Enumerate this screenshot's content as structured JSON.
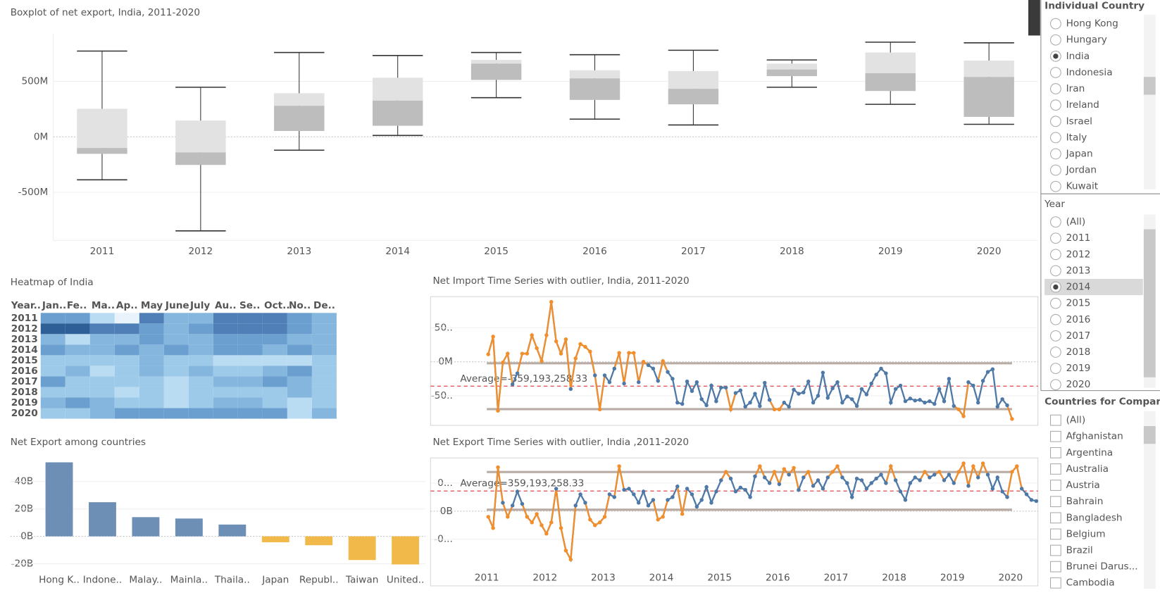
{
  "chart_data": [
    {
      "type": "box",
      "title": "Boxplot of net export, India, 2011-2020",
      "categories": [
        "2011",
        "2012",
        "2013",
        "2014",
        "2015",
        "2016",
        "2017",
        "2018",
        "2019",
        "2020"
      ],
      "max": [
        773000000,
        447000000,
        760000000,
        733000000,
        760000000,
        740000000,
        780000000,
        693000000,
        853000000,
        847000000
      ],
      "q3": [
        253000000,
        147000000,
        393000000,
        533000000,
        693000000,
        600000000,
        593000000,
        660000000,
        760000000,
        687000000
      ],
      "median": [
        -100000000,
        -140000000,
        280000000,
        327000000,
        660000000,
        527000000,
        433000000,
        607000000,
        573000000,
        540000000
      ],
      "q1": [
        -153000000,
        -253000000,
        53000000,
        100000000,
        513000000,
        333000000,
        293000000,
        547000000,
        413000000,
        180000000
      ],
      "min": [
        -387000000,
        -847000000,
        -120000000,
        13000000,
        353000000,
        160000000,
        107000000,
        447000000,
        293000000,
        113000000
      ],
      "box_colors": [
        "#e2e2e2",
        "#bdbdbd"
      ],
      "whisker_color": "#333333",
      "ylim": [
        -933000000,
        933000000
      ],
      "yticks": [
        {
          "value": 500000000,
          "label": "500M"
        },
        {
          "value": 0,
          "label": "0M"
        },
        {
          "value": -500000000,
          "label": "-500M"
        }
      ]
    },
    {
      "type": "heatmap",
      "title": "Heatmap of India",
      "row_header": "Year..",
      "categories": [
        "Jan..",
        "Fe..",
        "Ma..",
        "Ap..",
        "May",
        "June",
        "July",
        "Au..",
        "Se..",
        "Oct..",
        "No..",
        "De.."
      ],
      "rows": [
        "2011",
        "2012",
        "2013",
        "2014",
        "2015",
        "2016",
        "2017",
        "2018",
        "2019",
        "2020"
      ],
      "colors": [
        [
          "#6a9fcf",
          "#6a9fcf",
          "#b9dcf2",
          "#e8f3fb",
          "#4f7fb6",
          "#85b6dd",
          "#85b6dd",
          "#4f7fb6",
          "#4f7fb6",
          "#4f7fb6",
          "#6a9fcf",
          "#85b6dd"
        ],
        [
          "#2f5f97",
          "#2f5f97",
          "#4f7fb6",
          "#4f7fb6",
          "#6a9fcf",
          "#85b6dd",
          "#6a9fcf",
          "#4f7fb6",
          "#4f7fb6",
          "#4f7fb6",
          "#6a9fcf",
          "#85b6dd"
        ],
        [
          "#85b6dd",
          "#b9dcf2",
          "#85b6dd",
          "#85b6dd",
          "#6a9fcf",
          "#85b6dd",
          "#85b6dd",
          "#6a9fcf",
          "#6a9fcf",
          "#6a9fcf",
          "#85b6dd",
          "#85b6dd"
        ],
        [
          "#6a9fcf",
          "#85b6dd",
          "#85b6dd",
          "#6a9fcf",
          "#85b6dd",
          "#6a9fcf",
          "#85b6dd",
          "#6a9fcf",
          "#6a9fcf",
          "#85b6dd",
          "#6a9fcf",
          "#85b6dd"
        ],
        [
          "#9ecae9",
          "#9ecae9",
          "#9ecae9",
          "#9ecae9",
          "#85b6dd",
          "#9ecae9",
          "#9ecae9",
          "#b9dcf2",
          "#b9dcf2",
          "#b9dcf2",
          "#b9dcf2",
          "#9ecae9"
        ],
        [
          "#9ecae9",
          "#85b6dd",
          "#b9dcf2",
          "#9ecae9",
          "#85b6dd",
          "#9ecae9",
          "#85b6dd",
          "#9ecae9",
          "#9ecae9",
          "#85b6dd",
          "#6a9fcf",
          "#9ecae9"
        ],
        [
          "#6a9fcf",
          "#9ecae9",
          "#9ecae9",
          "#9ecae9",
          "#9ecae9",
          "#b9dcf2",
          "#9ecae9",
          "#85b6dd",
          "#85b6dd",
          "#6a9fcf",
          "#85b6dd",
          "#9ecae9"
        ],
        [
          "#9ecae9",
          "#9ecae9",
          "#9ecae9",
          "#b9dcf2",
          "#9ecae9",
          "#b9dcf2",
          "#9ecae9",
          "#9ecae9",
          "#9ecae9",
          "#9ecae9",
          "#85b6dd",
          "#9ecae9"
        ],
        [
          "#85b6dd",
          "#6a9fcf",
          "#85b6dd",
          "#9ecae9",
          "#9ecae9",
          "#b9dcf2",
          "#9ecae9",
          "#85b6dd",
          "#85b6dd",
          "#9ecae9",
          "#b9dcf2",
          "#9ecae9"
        ],
        [
          "#9ecae9",
          "#9ecae9",
          "#85b6dd",
          "#6a9fcf",
          "#6a9fcf",
          "#6a9fcf",
          "#6a9fcf",
          "#6a9fcf",
          "#6a9fcf",
          "#6a9fcf",
          "#b9dcf2",
          "#85b6dd"
        ]
      ]
    },
    {
      "type": "bar",
      "title": "Net Export among countries",
      "categories": [
        "Hong K..",
        "Indone..",
        "Malay..",
        "Mainla..",
        "Thaila..",
        "Japan",
        "Republ..",
        "Taiwan",
        "United.."
      ],
      "values": [
        54000000000,
        24900000000,
        14000000000,
        13000000000,
        8600000000,
        -4300000000,
        -6500000000,
        -17300000000,
        -20500000000
      ],
      "colors": [
        "#6e8fb5",
        "#6e8fb5",
        "#6e8fb5",
        "#6e8fb5",
        "#6e8fb5",
        "#f0b94a",
        "#f0b94a",
        "#f0b94a",
        "#f0b94a"
      ],
      "ylim": [
        -28600000000,
        61000000000
      ],
      "yticks": [
        {
          "value": 40000000000,
          "label": "40B"
        },
        {
          "value": 20000000000,
          "label": "20B"
        },
        {
          "value": 0,
          "label": "0B"
        },
        {
          "value": -20000000000,
          "label": "-20B"
        }
      ]
    },
    {
      "type": "line",
      "title": "Net Import Time Series with outlier, India, 2011-2020",
      "values": [
        110000000,
        370000000,
        -720000000,
        -10000000,
        120000000,
        -330000000,
        -170000000,
        120000000,
        120000000,
        390000000,
        200000000,
        10000000,
        390000000,
        880000000,
        300000000,
        120000000,
        330000000,
        -400000000,
        50000000,
        260000000,
        220000000,
        150000000,
        -200000000,
        -700000000,
        -200000000,
        -300000000,
        -100000000,
        130000000,
        -320000000,
        130000000,
        130000000,
        -300000000,
        0,
        -50000000,
        -100000000,
        -280000000,
        10000000,
        -150000000,
        -250000000,
        -600000000,
        -620000000,
        -290000000,
        -430000000,
        -300000000,
        -550000000,
        -640000000,
        -350000000,
        -580000000,
        -380000000,
        -380000000,
        -700000000,
        -460000000,
        -420000000,
        -660000000,
        -600000000,
        -470000000,
        -650000000,
        -310000000,
        -560000000,
        -700000000,
        -700000000,
        -600000000,
        -660000000,
        -410000000,
        -470000000,
        -450000000,
        -290000000,
        -600000000,
        -500000000,
        -160000000,
        -530000000,
        -390000000,
        -300000000,
        -600000000,
        -510000000,
        -550000000,
        -650000000,
        -400000000,
        -480000000,
        -320000000,
        -190000000,
        -100000000,
        -170000000,
        -600000000,
        -400000000,
        -350000000,
        -580000000,
        -540000000,
        -570000000,
        -560000000,
        -600000000,
        -580000000,
        -620000000,
        -400000000,
        -580000000,
        -250000000,
        -650000000,
        -700000000,
        -800000000,
        -300000000,
        -350000000,
        -600000000,
        -280000000,
        -150000000,
        -110000000,
        -660000000,
        -550000000,
        -640000000,
        -840000000
      ],
      "color": "#4e79a7",
      "outlier_color": "#f28e2b",
      "average": -359193258.33,
      "average_label": "Average=-359,193,258.33",
      "bands": [
        -22000000,
        -696000000
      ],
      "ylim": [
        -913000000,
        946000000
      ],
      "yticks": [
        {
          "value": 500000000,
          "label": "50.."
        },
        {
          "value": 0,
          "label": "0M"
        },
        {
          "value": -500000000,
          "label": "-50.."
        }
      ]
    },
    {
      "type": "line",
      "title": "Net Export Time Series with outlier, India ,2011-2020",
      "categories": [
        "2011",
        null,
        null,
        null,
        null,
        null,
        null,
        null,
        null,
        null,
        null,
        null,
        "2012",
        null,
        null,
        null,
        null,
        null,
        null,
        null,
        null,
        null,
        null,
        null,
        "2013",
        null,
        null,
        null,
        null,
        null,
        null,
        null,
        null,
        null,
        null,
        null,
        "2014",
        null,
        null,
        null,
        null,
        null,
        null,
        null,
        null,
        null,
        null,
        null,
        "2015",
        null,
        null,
        null,
        null,
        null,
        null,
        null,
        null,
        null,
        null,
        null,
        "2016",
        null,
        null,
        null,
        null,
        null,
        null,
        null,
        null,
        null,
        null,
        null,
        "2017",
        null,
        null,
        null,
        null,
        null,
        null,
        null,
        null,
        null,
        null,
        null,
        "2018",
        null,
        null,
        null,
        null,
        null,
        null,
        null,
        null,
        null,
        null,
        null,
        "2019",
        null,
        null,
        null,
        null,
        null,
        null,
        null,
        null,
        null,
        null,
        null,
        "2020",
        null,
        null,
        null,
        null,
        null
      ],
      "values": [
        -100000000,
        -300000000,
        780000000,
        150000000,
        -100000000,
        100000000,
        350000000,
        130000000,
        -100000000,
        -200000000,
        -50000000,
        -250000000,
        -400000000,
        -200000000,
        400000000,
        -300000000,
        -700000000,
        -860000000,
        100000000,
        300000000,
        150000000,
        -150000000,
        -250000000,
        -200000000,
        -100000000,
        300000000,
        250000000,
        800000000,
        380000000,
        400000000,
        300000000,
        150000000,
        350000000,
        100000000,
        200000000,
        -150000000,
        -100000000,
        200000000,
        250000000,
        440000000,
        -50000000,
        400000000,
        300000000,
        80000000,
        200000000,
        430000000,
        150000000,
        350000000,
        550000000,
        700000000,
        580000000,
        350000000,
        420000000,
        380000000,
        250000000,
        620000000,
        800000000,
        600000000,
        500000000,
        700000000,
        480000000,
        750000000,
        650000000,
        770000000,
        380000000,
        600000000,
        700000000,
        450000000,
        550000000,
        400000000,
        600000000,
        700000000,
        800000000,
        600000000,
        500000000,
        250000000,
        580000000,
        550000000,
        400000000,
        500000000,
        580000000,
        650000000,
        500000000,
        800000000,
        550000000,
        350000000,
        200000000,
        500000000,
        600000000,
        550000000,
        700000000,
        600000000,
        650000000,
        700000000,
        550000000,
        650000000,
        500000000,
        700000000,
        850000000,
        450000000,
        800000000,
        600000000,
        850000000,
        650000000,
        400000000,
        600000000,
        350000000,
        250000000,
        700000000,
        800000000,
        400000000,
        300000000,
        200000000,
        180000000
      ],
      "color": "#4e79a7",
      "outlier_color": "#f28e2b",
      "average": 359193258.33,
      "average_label": "Average=359,193,258.33",
      "bands": [
        697000000,
        26000000
      ],
      "ylim": [
        -1013000000,
        934000000
      ],
      "yticks": [
        {
          "value": 500000000,
          "label": "0..."
        },
        {
          "value": 0,
          "label": "0B"
        },
        {
          "value": -500000000,
          "label": "-0..."
        }
      ]
    }
  ],
  "filters": [
    {
      "title": "Individual Country",
      "kind": "radio",
      "selected": 2,
      "items": [
        "Hong Kong",
        "Hungary",
        "India",
        "Indonesia",
        "Iran",
        "Ireland",
        "Israel",
        "Italy",
        "Japan",
        "Jordan",
        "Kuwait"
      ]
    },
    {
      "title": "Year",
      "kind": "radio",
      "selected": 4,
      "items": [
        "(All)",
        "2011",
        "2012",
        "2013",
        "2014",
        "2015",
        "2016",
        "2017",
        "2018",
        "2019",
        "2020"
      ]
    },
    {
      "title": "Countries for Comparison",
      "kind": "checkbox",
      "items": [
        "(All)",
        "Afghanistan",
        "Argentina",
        "Australia",
        "Austria",
        "Bahrain",
        "Bangladesh",
        "Belgium",
        "Brazil",
        "Brunei Darus...",
        "Cambodia"
      ]
    }
  ]
}
